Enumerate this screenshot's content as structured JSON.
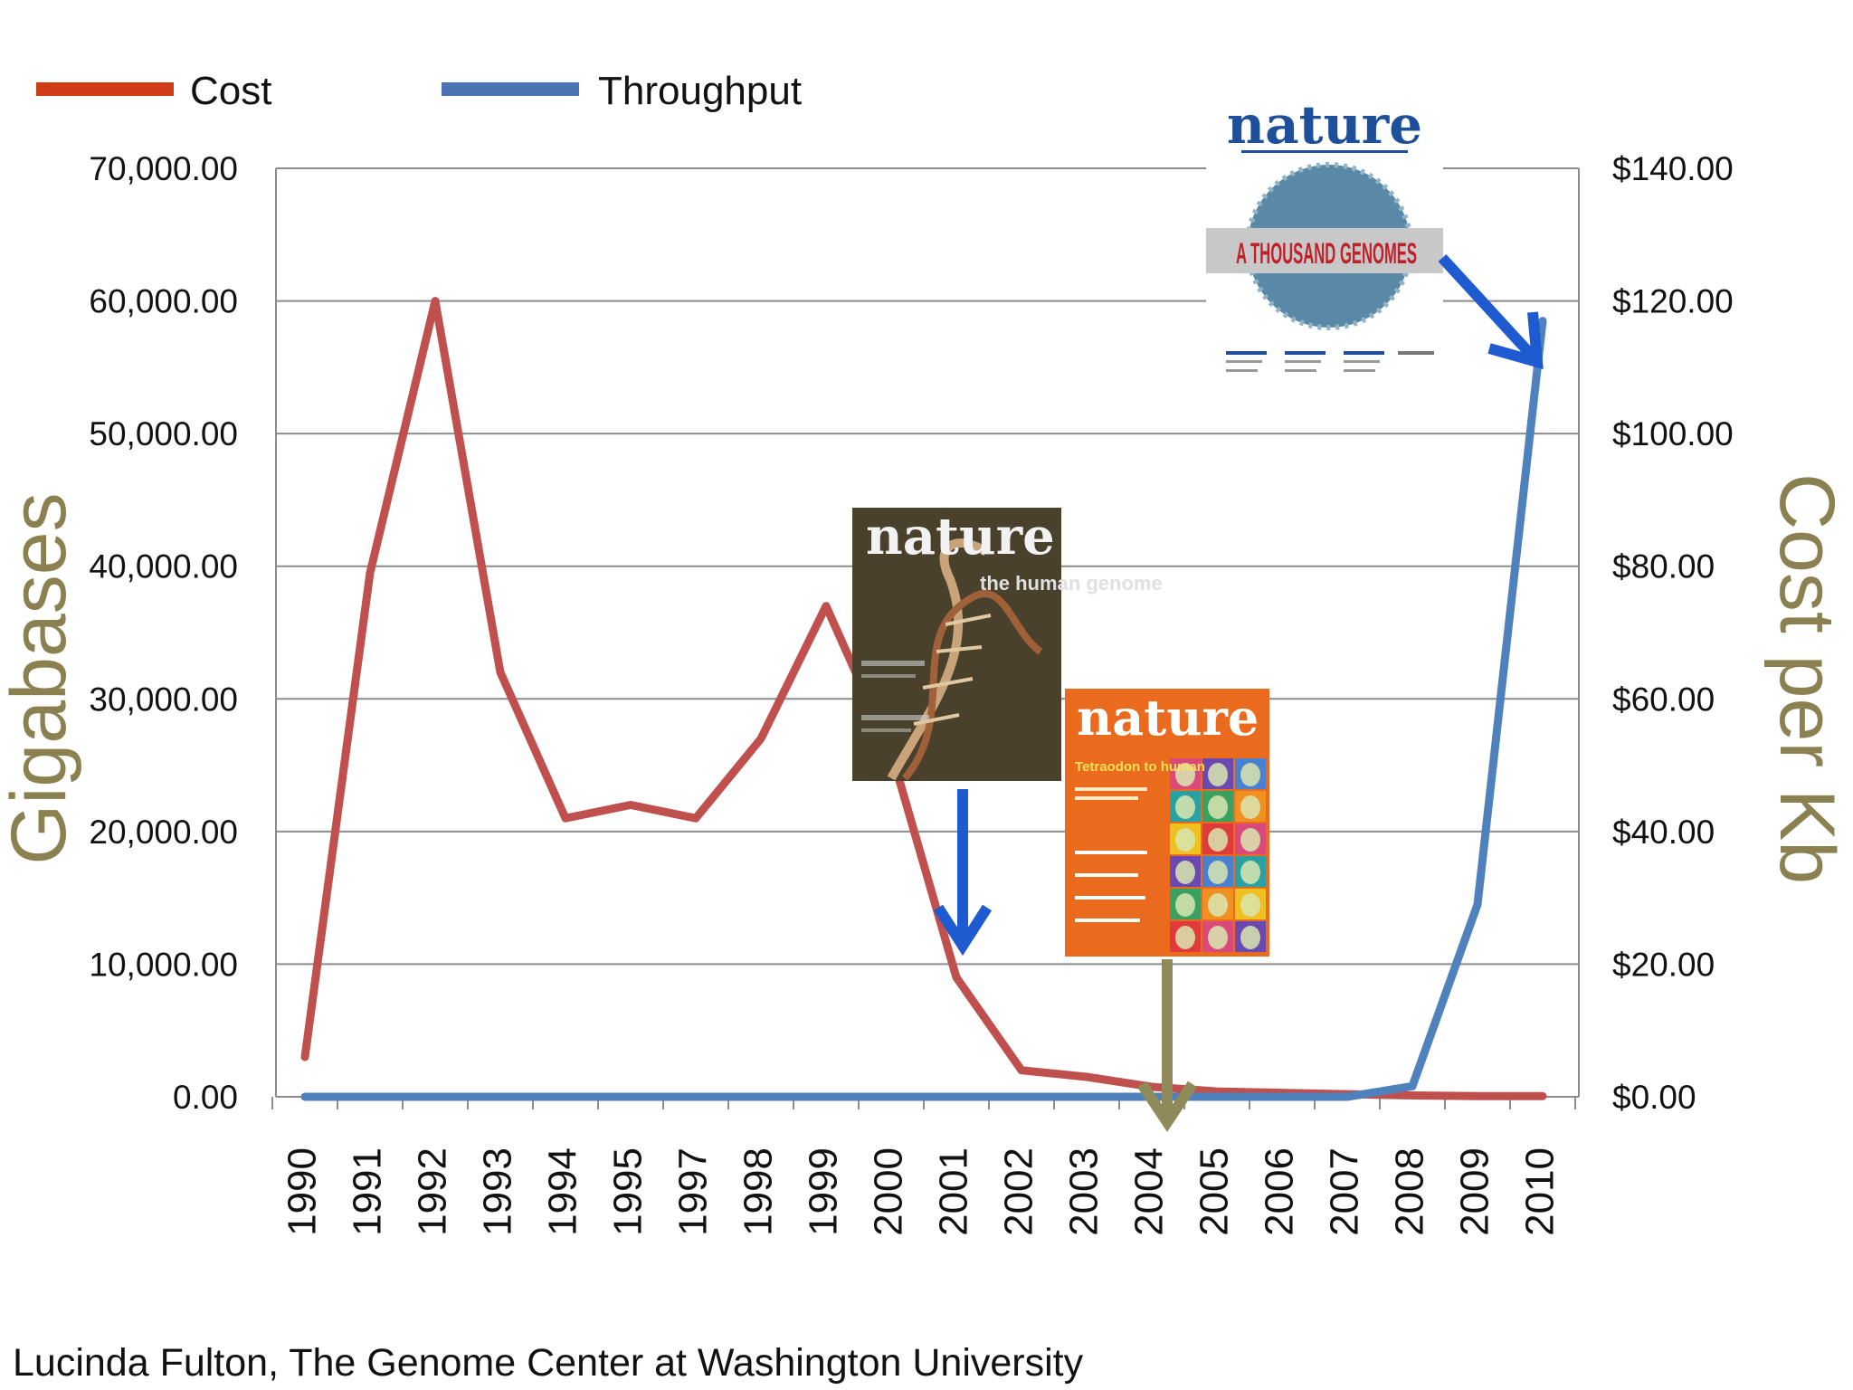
{
  "chart_data": {
    "type": "line",
    "legend": {
      "placement": "top-left",
      "entries": [
        "Cost",
        "Throughput"
      ]
    },
    "categories": [
      "1990",
      "1991",
      "1992",
      "1993",
      "1994",
      "1995",
      "1997",
      "1998",
      "1999",
      "2000",
      "2001",
      "2002",
      "2003",
      "2004",
      "2005",
      "2006",
      "2007",
      "2008",
      "2009",
      "2010"
    ],
    "series": [
      {
        "name": "Cost",
        "axis": "right",
        "color": "#c0504d",
        "values": [
          6,
          79,
          120,
          64,
          42,
          44,
          42,
          54,
          74,
          52,
          18,
          4,
          3,
          1.5,
          0.8,
          0.6,
          0.4,
          0.2,
          0.1,
          0.1
        ]
      },
      {
        "name": "Throughput",
        "axis": "left",
        "color": "#4f81bd",
        "values": [
          0,
          0,
          0,
          0,
          0,
          0,
          0,
          0,
          0,
          0,
          0,
          0,
          0,
          0,
          0,
          0,
          0,
          800,
          14500,
          58500
        ]
      }
    ],
    "ylabel": "Gigabases",
    "y2label": "Cost per Kb",
    "ylim": [
      0,
      70000
    ],
    "y2lim": [
      0,
      140
    ],
    "y_ticks": [
      "0.00",
      "10,000.00",
      "20,000.00",
      "30,000.00",
      "40,000.00",
      "50,000.00",
      "60,000.00",
      "70,000.00"
    ],
    "y2_ticks": [
      "$0.00",
      "$20.00",
      "$40.00",
      "$60.00",
      "$80.00",
      "$100.00",
      "$120.00",
      "$140.00"
    ],
    "grid": true
  },
  "covers": [
    {
      "masthead": "nature",
      "headline": "the human genome",
      "points_to_year": "2001",
      "arrow_color": "#1f5bd0"
    },
    {
      "masthead": "nature",
      "headline": "Tetraodon to human",
      "points_to_year": "2004",
      "arrow_color": "#8f8a5a"
    },
    {
      "masthead": "nature",
      "headline": "A THOUSAND GENOMES",
      "points_to_year": "2010",
      "arrow_color": "#1f5bd0"
    }
  ],
  "credit": "Lucinda Fulton, The Genome Center at Washington University"
}
